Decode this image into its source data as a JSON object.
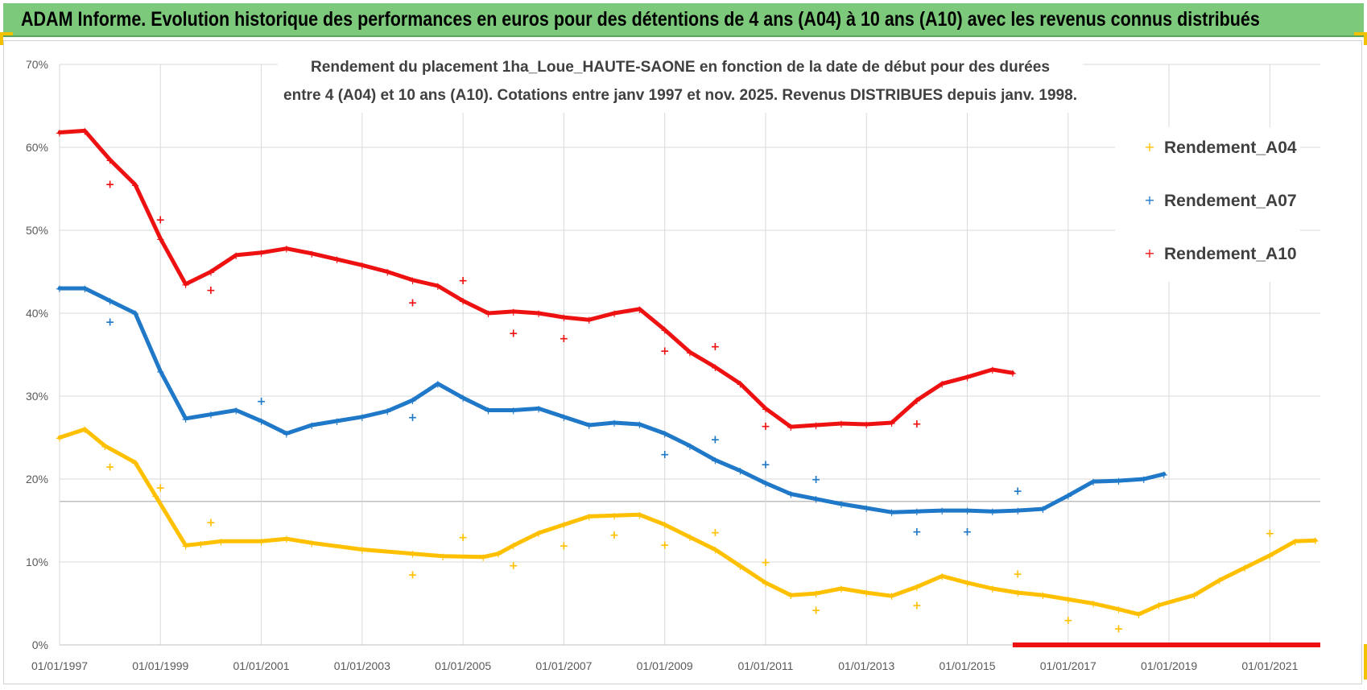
{
  "banner": {
    "title": "ADAM Informe. Evolution historique des performances en euros pour des détentions de 4 ans (A04) à 10 ans (A10) avec les revenus connus distribués"
  },
  "colors": {
    "banner": "#7dc97b",
    "A04": "#ffc000",
    "A07": "#1f78c8",
    "A10": "#ee1111",
    "accent": "#f2c200"
  },
  "chart_data": {
    "type": "scatter",
    "title_lines": [
      "Rendement du placement 1ha_Loue_HAUTE-SAONE en fonction de la date de début pour des durées",
      "entre 4 (A04) et 10 ans (A10).  Cotations entre janv 1997 et nov. 2025. Revenus DISTRIBUES depuis janv. 1998."
    ],
    "xlabel": "",
    "ylabel": "",
    "xlim": [
      1997.0,
      2022.0
    ],
    "ylim": [
      0,
      70
    ],
    "y_ticks": [
      "0%",
      "10%",
      "20%",
      "30%",
      "40%",
      "50%",
      "60%",
      "70%"
    ],
    "x_ticks": [
      {
        "x": 1997,
        "label": "01/01/1997"
      },
      {
        "x": 1999,
        "label": "01/01/1999"
      },
      {
        "x": 2001,
        "label": "01/01/2001"
      },
      {
        "x": 2003,
        "label": "01/01/2003"
      },
      {
        "x": 2005,
        "label": "01/01/2005"
      },
      {
        "x": 2007,
        "label": "01/01/2007"
      },
      {
        "x": 2009,
        "label": "01/01/2009"
      },
      {
        "x": 2011,
        "label": "01/01/2011"
      },
      {
        "x": 2013,
        "label": "01/01/2013"
      },
      {
        "x": 2015,
        "label": "01/01/2015"
      },
      {
        "x": 2017,
        "label": "01/01/2017"
      },
      {
        "x": 2019,
        "label": "01/01/2019"
      },
      {
        "x": 2021,
        "label": "01/01/2021"
      }
    ],
    "legend": [
      "Rendement_A04",
      "Rendement_A07",
      "Rendement_A10"
    ],
    "series": [
      {
        "name": "Rendement_A04",
        "points": [
          [
            1997.0,
            25.0
          ],
          [
            1997.5,
            26.0
          ],
          [
            1997.9,
            24.0
          ],
          [
            1998.5,
            22.0
          ],
          [
            1998.9,
            18.0
          ],
          [
            1999.5,
            12.0
          ],
          [
            1999.8,
            12.2
          ],
          [
            2000.2,
            12.5
          ],
          [
            2001.0,
            12.5
          ],
          [
            2001.5,
            12.8
          ],
          [
            2002.0,
            12.3
          ],
          [
            2003.0,
            11.5
          ],
          [
            2004.0,
            11.0
          ],
          [
            2004.6,
            10.7
          ],
          [
            2005.4,
            10.6
          ],
          [
            2005.7,
            11.0
          ],
          [
            2006.0,
            12.0
          ],
          [
            2006.5,
            13.5
          ],
          [
            2007.0,
            14.5
          ],
          [
            2007.5,
            15.5
          ],
          [
            2008.0,
            15.6
          ],
          [
            2008.5,
            15.7
          ],
          [
            2009.0,
            14.5
          ],
          [
            2009.5,
            13.0
          ],
          [
            2010.0,
            11.5
          ],
          [
            2010.5,
            9.5
          ],
          [
            2011.0,
            7.5
          ],
          [
            2011.5,
            6.0
          ],
          [
            2012.0,
            6.2
          ],
          [
            2012.5,
            6.8
          ],
          [
            2013.0,
            6.3
          ],
          [
            2013.5,
            5.9
          ],
          [
            2014.0,
            7.0
          ],
          [
            2014.5,
            8.3
          ],
          [
            2015.0,
            7.5
          ],
          [
            2015.5,
            6.8
          ],
          [
            2016.0,
            6.3
          ],
          [
            2016.5,
            6.0
          ],
          [
            2017.0,
            5.5
          ],
          [
            2017.5,
            5.0
          ],
          [
            2018.0,
            4.3
          ],
          [
            2018.4,
            3.7
          ],
          [
            2018.8,
            4.8
          ],
          [
            2019.5,
            6.0
          ],
          [
            2020.0,
            7.8
          ],
          [
            2020.5,
            9.3
          ],
          [
            2021.0,
            10.8
          ],
          [
            2021.5,
            12.5
          ],
          [
            2021.9,
            12.6
          ]
        ],
        "isolated": [
          [
            1998.0,
            21.5
          ],
          [
            1999.0,
            19.0
          ],
          [
            2000.0,
            14.8
          ],
          [
            2004.0,
            8.5
          ],
          [
            2005.0,
            13.0
          ],
          [
            2006.0,
            9.6
          ],
          [
            2007.0,
            12.0
          ],
          [
            2008.0,
            13.3
          ],
          [
            2009.0,
            12.1
          ],
          [
            2010.0,
            13.6
          ],
          [
            2011.0,
            10.0
          ],
          [
            2012.0,
            4.2
          ],
          [
            2014.0,
            4.8
          ],
          [
            2016.0,
            8.6
          ],
          [
            2017.0,
            3.0
          ],
          [
            2018.0,
            2.0
          ],
          [
            2021.0,
            13.5
          ]
        ]
      },
      {
        "name": "Rendement_A07",
        "points": [
          [
            1997.0,
            43.0
          ],
          [
            1997.5,
            43.0
          ],
          [
            1998.0,
            41.5
          ],
          [
            1998.5,
            40.0
          ],
          [
            1999.0,
            33.0
          ],
          [
            1999.5,
            27.3
          ],
          [
            2000.0,
            27.8
          ],
          [
            2000.5,
            28.3
          ],
          [
            2001.0,
            27.0
          ],
          [
            2001.5,
            25.5
          ],
          [
            2002.0,
            26.5
          ],
          [
            2002.5,
            27.0
          ],
          [
            2003.0,
            27.5
          ],
          [
            2003.5,
            28.2
          ],
          [
            2004.0,
            29.5
          ],
          [
            2004.5,
            31.5
          ],
          [
            2005.0,
            29.8
          ],
          [
            2005.5,
            28.3
          ],
          [
            2006.0,
            28.3
          ],
          [
            2006.5,
            28.5
          ],
          [
            2007.0,
            27.5
          ],
          [
            2007.5,
            26.5
          ],
          [
            2008.0,
            26.8
          ],
          [
            2008.5,
            26.6
          ],
          [
            2009.0,
            25.5
          ],
          [
            2009.5,
            24.0
          ],
          [
            2010.0,
            22.3
          ],
          [
            2010.5,
            21.0
          ],
          [
            2011.0,
            19.5
          ],
          [
            2011.5,
            18.2
          ],
          [
            2012.0,
            17.6
          ],
          [
            2012.5,
            17.0
          ],
          [
            2013.0,
            16.5
          ],
          [
            2013.5,
            16.0
          ],
          [
            2014.0,
            16.1
          ],
          [
            2014.5,
            16.2
          ],
          [
            2015.0,
            16.2
          ],
          [
            2015.5,
            16.1
          ],
          [
            2016.0,
            16.2
          ],
          [
            2016.5,
            16.4
          ],
          [
            2017.0,
            18.0
          ],
          [
            2017.5,
            19.7
          ],
          [
            2018.0,
            19.8
          ],
          [
            2018.5,
            20.0
          ],
          [
            2018.9,
            20.6
          ]
        ],
        "isolated": [
          [
            1998.0,
            39.0
          ],
          [
            2001.0,
            29.4
          ],
          [
            2004.0,
            27.5
          ],
          [
            2009.0,
            23.0
          ],
          [
            2010.0,
            24.8
          ],
          [
            2011.0,
            21.8
          ],
          [
            2012.0,
            20.0
          ],
          [
            2014.0,
            13.7
          ],
          [
            2015.0,
            13.7
          ],
          [
            2016.0,
            18.6
          ]
        ]
      },
      {
        "name": "Rendement_A10",
        "points": [
          [
            1997.0,
            61.8
          ],
          [
            1997.5,
            62.0
          ],
          [
            1998.0,
            58.5
          ],
          [
            1998.5,
            55.5
          ],
          [
            1999.0,
            49.0
          ],
          [
            1999.5,
            43.5
          ],
          [
            2000.0,
            45.0
          ],
          [
            2000.5,
            47.0
          ],
          [
            2001.0,
            47.3
          ],
          [
            2001.5,
            47.8
          ],
          [
            2002.0,
            47.2
          ],
          [
            2002.5,
            46.5
          ],
          [
            2003.0,
            45.8
          ],
          [
            2003.5,
            45.0
          ],
          [
            2004.0,
            44.0
          ],
          [
            2004.5,
            43.3
          ],
          [
            2005.0,
            41.5
          ],
          [
            2005.5,
            40.0
          ],
          [
            2006.0,
            40.2
          ],
          [
            2006.5,
            40.0
          ],
          [
            2007.0,
            39.5
          ],
          [
            2007.5,
            39.2
          ],
          [
            2008.0,
            40.0
          ],
          [
            2008.5,
            40.5
          ],
          [
            2009.0,
            38.0
          ],
          [
            2009.5,
            35.3
          ],
          [
            2010.0,
            33.5
          ],
          [
            2010.5,
            31.5
          ],
          [
            2011.0,
            28.5
          ],
          [
            2011.5,
            26.3
          ],
          [
            2012.0,
            26.5
          ],
          [
            2012.5,
            26.7
          ],
          [
            2013.0,
            26.6
          ],
          [
            2013.5,
            26.8
          ],
          [
            2014.0,
            29.5
          ],
          [
            2014.5,
            31.5
          ],
          [
            2015.0,
            32.3
          ],
          [
            2015.5,
            33.2
          ],
          [
            2015.9,
            32.8
          ]
        ],
        "zero_line": [
          [
            2015.9,
            0
          ],
          [
            2022.0,
            0
          ]
        ],
        "isolated": [
          [
            1998.0,
            55.6
          ],
          [
            1999.0,
            51.3
          ],
          [
            2000.0,
            42.8
          ],
          [
            2004.0,
            41.3
          ],
          [
            2005.0,
            44.0
          ],
          [
            2006.0,
            37.6
          ],
          [
            2007.0,
            37.0
          ],
          [
            2009.0,
            35.5
          ],
          [
            2010.0,
            36.0
          ],
          [
            2011.0,
            26.4
          ],
          [
            2014.0,
            26.7
          ]
        ]
      }
    ]
  }
}
